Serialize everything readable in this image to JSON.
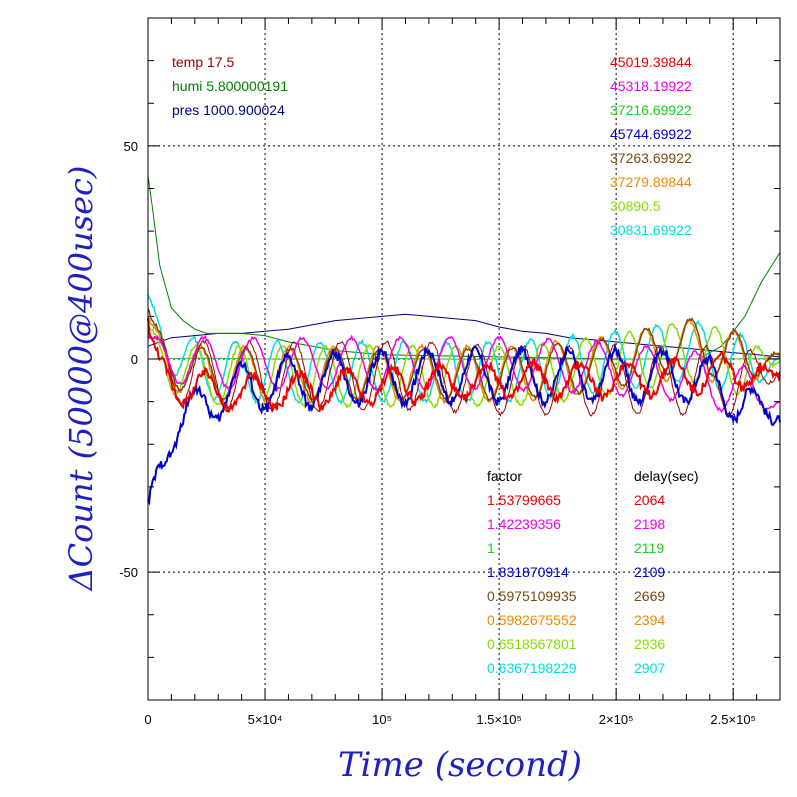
{
  "chart_data": {
    "type": "line",
    "xlabel": "Time (second)",
    "ylabel": "ΔCount (50000@400usec)",
    "xlim": [
      0,
      270000
    ],
    "ylim": [
      -80,
      80
    ],
    "grid": true,
    "x_ticks": [
      {
        "value": 0,
        "label": "0"
      },
      {
        "value": 50000,
        "label": "5×10⁴"
      },
      {
        "value": 100000,
        "label": "10⁵"
      },
      {
        "value": 150000,
        "label": "1.5×10⁵"
      },
      {
        "value": 200000,
        "label": "2×10⁵"
      },
      {
        "value": 250000,
        "label": "2.5×10⁵"
      }
    ],
    "y_ticks": [
      {
        "value": 50,
        "label": "50"
      },
      {
        "value": 0,
        "label": "0"
      },
      {
        "value": -50,
        "label": "-50"
      }
    ],
    "env": [
      {
        "label": "temp 17.5",
        "color": "#a00000"
      },
      {
        "label": "humi 5.800000191",
        "color": "#008000"
      },
      {
        "label": "pres 1000.900024",
        "color": "#000080"
      }
    ],
    "legend_top_right": [
      {
        "label": "45019.39844",
        "color": "#ee0000"
      },
      {
        "label": "45318.19922",
        "color": "#ee00ee"
      },
      {
        "label": "37216.69922",
        "color": "#22cc22"
      },
      {
        "label": "45744.69922",
        "color": "#0000cc"
      },
      {
        "label": "37263.69922",
        "color": "#7a4a10"
      },
      {
        "label": "37279.89844",
        "color": "#ee8800"
      },
      {
        "label": "30890.5",
        "color": "#88dd00"
      },
      {
        "label": "30831.69922",
        "color": "#00dddd"
      }
    ],
    "table_headers": {
      "factor": "factor",
      "delay": "delay(sec)"
    },
    "table_rows": [
      {
        "factor": "1.53799665",
        "delay": "2064",
        "color": "#ee0000"
      },
      {
        "factor": "1.42239356",
        "delay": "2198",
        "color": "#ee00ee"
      },
      {
        "factor": "1",
        "delay": "2119",
        "color": "#22cc22"
      },
      {
        "factor": "1.831870914",
        "delay": "2109",
        "color": "#0000cc"
      },
      {
        "factor": "0.5975109935",
        "delay": "2669",
        "color": "#7a4a10"
      },
      {
        "factor": "0.5982675552",
        "delay": "2394",
        "color": "#ee8800"
      },
      {
        "factor": "0.6518567801",
        "delay": "2936",
        "color": "#88dd00"
      },
      {
        "factor": "0.6367198229",
        "delay": "2907",
        "color": "#00dddd"
      }
    ],
    "series": [
      {
        "color": "#000080",
        "width": 1,
        "x": [
          0,
          10000,
          20000,
          30000,
          40000,
          50000,
          60000,
          70000,
          80000,
          90000,
          100000,
          110000,
          120000,
          130000,
          140000,
          150000,
          160000,
          170000,
          180000,
          190000,
          200000,
          210000,
          220000,
          230000,
          240000,
          250000,
          260000,
          270000
        ],
        "y": [
          3,
          5,
          5.5,
          6,
          6,
          6.5,
          7,
          8,
          9,
          9.5,
          10,
          10.5,
          10,
          9.5,
          9,
          7.5,
          6.5,
          6,
          5,
          4.5,
          4,
          3.5,
          3,
          2.5,
          2,
          1.5,
          1,
          0.5
        ]
      },
      {
        "color": "#008000",
        "width": 1,
        "x": [
          0,
          2000,
          5000,
          10000,
          15000,
          20000,
          25000,
          30000,
          40000,
          50000,
          60000,
          80000,
          100000,
          150000,
          200000,
          220000,
          235000,
          245000,
          255000,
          262000,
          270000
        ],
        "y": [
          43,
          35,
          22,
          12,
          9,
          7,
          6,
          6,
          6,
          5.5,
          4,
          2,
          1,
          0.5,
          0,
          0,
          0,
          3,
          10,
          18,
          25
        ]
      },
      {
        "color": "#22cc22",
        "width": 1,
        "x": [
          0,
          20000,
          40000,
          60000,
          80000,
          100000,
          120000,
          140000,
          160000,
          180000,
          200000,
          220000,
          240000,
          270000
        ],
        "y": [
          0,
          0.2,
          0.1,
          -0.1,
          0.1,
          0.2,
          0,
          -0.1,
          0.1,
          0,
          -0.1,
          0.1,
          0,
          0.1
        ]
      }
    ],
    "oscillations": [
      {
        "color": "#00dddd",
        "width": 1.5,
        "base": -3,
        "amp": 7,
        "period": 18000,
        "phase": 1.1,
        "start": 15,
        "tau": 8000,
        "trend": [
          0,
          0,
          0,
          0,
          0,
          2,
          5,
          -1
        ],
        "end": 0
      },
      {
        "color": "#88dd00",
        "width": 1.5,
        "base": -4,
        "amp": 7,
        "period": 18500,
        "phase": 0.9,
        "start": 8,
        "tau": 6000,
        "trend": [
          0,
          0,
          0,
          0,
          0,
          2,
          6,
          0
        ],
        "end": 0
      },
      {
        "color": "#ee8800",
        "width": 1.5,
        "base": -3.5,
        "amp": 6.5,
        "period": 19000,
        "phase": 0.5,
        "start": 10,
        "tau": 6000,
        "trend": [
          0,
          0,
          0,
          0,
          0,
          2,
          6,
          1
        ],
        "end": 1
      },
      {
        "color": "#7a4a10",
        "width": 1.5,
        "base": -3.5,
        "amp": 6,
        "period": 19000,
        "phase": 0.3,
        "start": 12,
        "tau": 6000,
        "trend": [
          0,
          0,
          0,
          0,
          0,
          2,
          7,
          1
        ],
        "end": 1
      },
      {
        "color": "#a00000",
        "width": 1,
        "base": -4,
        "amp": 8,
        "period": 19500,
        "phase": 0.2,
        "start": 6,
        "tau": 6000,
        "trend": [
          0,
          0,
          0,
          0,
          -1,
          -1,
          -1,
          -1
        ],
        "end": -3
      },
      {
        "color": "#ee00ee",
        "width": 1.5,
        "base": -1,
        "amp": 6,
        "period": 21000,
        "phase": 0.7,
        "start": 5,
        "tau": 6000,
        "trend": [
          0,
          0,
          0,
          0,
          0,
          -1,
          -3,
          -9
        ],
        "end": -10
      },
      {
        "color": "#0000cc",
        "width": 2,
        "base": -4,
        "amp": 6,
        "period": 20000,
        "phase": 1.7,
        "start": -30,
        "tau": 12000,
        "trend": [
          -4,
          -2,
          -1,
          0,
          0,
          0,
          0,
          -9
        ],
        "end": -14
      },
      {
        "color": "#ee0000",
        "width": 2,
        "base": -5,
        "amp": 4,
        "period": 20000,
        "phase": 0.1,
        "start": 10,
        "tau": 4000,
        "trend": [
          -1,
          -3,
          -2,
          -1,
          0,
          0,
          1,
          3
        ],
        "end": -4
      }
    ]
  }
}
